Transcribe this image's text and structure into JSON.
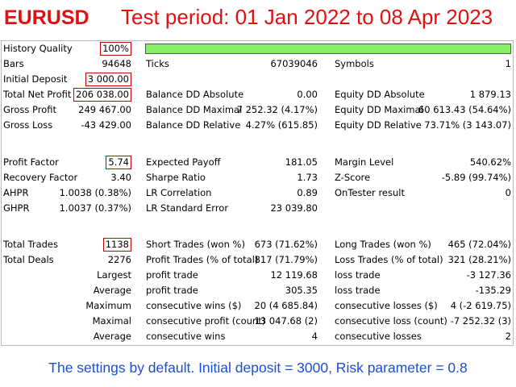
{
  "header": {
    "symbol": "EURUSD",
    "period": "Test period: 01 Jan 2022 to 08 Apr 2023"
  },
  "colors": {
    "title": "#e01010",
    "footer": "#1a4fd0",
    "highlight_box": "#cc0000",
    "quality_bar": "#88ee66"
  },
  "quality": {
    "label": "History Quality",
    "value": "100%",
    "fraction": 1.0
  },
  "rows1": [
    {
      "l1": "Bars",
      "v1": "94648",
      "l2": "Ticks",
      "v2": "67039046",
      "l3": "Symbols",
      "v3": "1"
    },
    {
      "l1": "Initial Deposit",
      "v1": "3 000.00",
      "l2": "",
      "v2": "",
      "l3": "",
      "v3": ""
    },
    {
      "l1": "Total Net Profit",
      "v1": "206 038.00",
      "l2": "Balance DD Absolute",
      "v2": "0.00",
      "l3": "Equity DD Absolute",
      "v3": "1 879.13"
    },
    {
      "l1": "Gross Profit",
      "v1": "249 467.00",
      "l2": "Balance DD Maximal",
      "v2": "7 252.32 (4.17%)",
      "l3": "Equity DD Maximal",
      "v3": "60 613.43 (54.64%)"
    },
    {
      "l1": "Gross Loss",
      "v1": "-43 429.00",
      "l2": "Balance DD Relative",
      "v2": "4.27% (615.85)",
      "l3": "Equity DD Relative",
      "v3": "73.71% (3 143.07)"
    }
  ],
  "rows2": [
    {
      "l1": "Profit Factor",
      "v1": "5.74",
      "l2": "Expected Payoff",
      "v2": "181.05",
      "l3": "Margin Level",
      "v3": "540.62%"
    },
    {
      "l1": "Recovery Factor",
      "v1": "3.40",
      "l2": "Sharpe Ratio",
      "v2": "1.73",
      "l3": "Z-Score",
      "v3": "-5.89 (99.74%)"
    },
    {
      "l1": "AHPR",
      "v1": "1.0038 (0.38%)",
      "l2": "LR Correlation",
      "v2": "0.89",
      "l3": "OnTester result",
      "v3": "0"
    },
    {
      "l1": "GHPR",
      "v1": "1.0037 (0.37%)",
      "l2": "LR Standard Error",
      "v2": "23 039.80",
      "l3": "",
      "v3": ""
    }
  ],
  "rows3": [
    {
      "l1": "Total Trades",
      "v1": "1138",
      "l2": "Short Trades (won %)",
      "v2": "673 (71.62%)",
      "l3": "Long Trades (won %)",
      "v3": "465 (72.04%)"
    },
    {
      "l1": "Total Deals",
      "v1": "2276",
      "l2": "Profit Trades (% of total)",
      "v2": "817 (71.79%)",
      "l3": "Loss Trades (% of total)",
      "v3": "321 (28.21%)"
    },
    {
      "l1": "",
      "v1": "Largest",
      "l2": "profit trade",
      "v2": "12 119.68",
      "l3": "loss trade",
      "v3": "-3 127.36"
    },
    {
      "l1": "",
      "v1": "Average",
      "l2": "profit trade",
      "v2": "305.35",
      "l3": "loss trade",
      "v3": "-135.29"
    },
    {
      "l1": "",
      "v1": "Maximum",
      "l2": "consecutive wins ($)",
      "v2": "20 (4 685.84)",
      "l3": "consecutive losses ($)",
      "v3": "4 (-2 619.75)"
    },
    {
      "l1": "",
      "v1": "Maximal",
      "l2": "consecutive profit (count)",
      "v2": "13 047.68 (2)",
      "l3": "consecutive loss (count)",
      "v3": "-7 252.32 (3)"
    },
    {
      "l1": "",
      "v1": "Average",
      "l2": "consecutive wins",
      "v2": "4",
      "l3": "consecutive losses",
      "v3": "2"
    }
  ],
  "boxed_values": [
    "100%",
    "3 000.00",
    "206 038.00",
    "5.74",
    "1138"
  ],
  "footer": "The settings by default.  Initial deposit = 3000,  Risk parameter = 0.8"
}
